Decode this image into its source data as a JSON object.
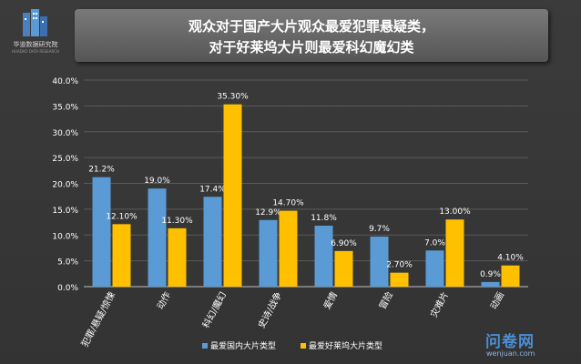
{
  "header": {
    "logo_text": "华道数据研究院",
    "logo_subtext": "HUADAO DATA RESEARCH",
    "title_line1": "观众对于国产大片观众最爱犯罪悬疑类，",
    "title_line2": "对于好莱坞大片则最爱科幻魔幻类"
  },
  "colors": {
    "series_domestic": "#5b9bd5",
    "series_hollywood": "#ffc000",
    "background": "#3a3a3a",
    "grid": "#5a5a5a",
    "text": "#ffffff"
  },
  "chart_data": {
    "type": "bar",
    "categories": [
      "犯罪/悬疑/惊悚",
      "动作",
      "科幻/魔幻",
      "史诗/战争",
      "爱情",
      "冒险",
      "灾难片",
      "动画"
    ],
    "series": [
      {
        "name": "最爱国内大片类型",
        "values": [
          21.2,
          19.0,
          17.4,
          12.9,
          11.8,
          9.7,
          7.0,
          0.9
        ],
        "labels": [
          "21.2%",
          "19.0%",
          "17.4%",
          "12.9%",
          "11.8%",
          "9.7%",
          "7.0%",
          "0.9%"
        ]
      },
      {
        "name": "最爱好莱坞大片类型",
        "values": [
          12.1,
          11.3,
          35.3,
          14.7,
          6.9,
          2.7,
          13.0,
          4.1
        ],
        "labels": [
          "12.10%",
          "11.30%",
          "35.30%",
          "14.70%",
          "6.90%",
          "2.70%",
          "13.00%",
          "4.10%"
        ]
      }
    ],
    "yticks": [
      "0.0%",
      "5.0%",
      "10.0%",
      "15.0%",
      "20.0%",
      "25.0%",
      "30.0%",
      "35.0%",
      "40.0%"
    ],
    "ylim": [
      0,
      40
    ],
    "grid": true,
    "legend_position": "bottom"
  },
  "watermark": {
    "main": "问卷网",
    "sub": "wenjuan.com"
  }
}
